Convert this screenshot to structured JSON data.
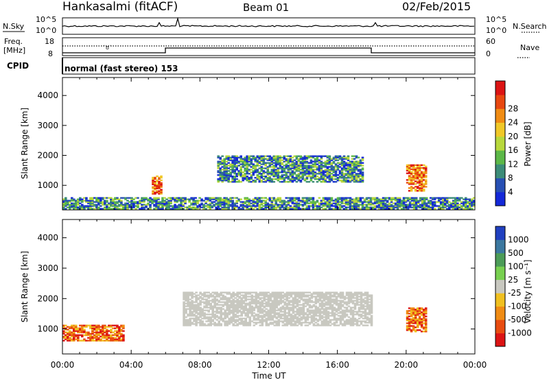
{
  "header": {
    "station": "Hankasalmi (fitACF)",
    "beam": "Beam 01",
    "date": "02/Feb/2015"
  },
  "noise_panel": {
    "left_label": "N.Sky",
    "right_label": "N.Search",
    "left_ticks": [
      "10^5",
      "10^0"
    ],
    "right_ticks": [
      "10^5",
      "10^0"
    ]
  },
  "freq_panel": {
    "left_label_1": "Freq.",
    "left_label_2": "[MHz]",
    "left_ticks": [
      "18",
      "8"
    ],
    "right_label": "Nave",
    "right_ticks": [
      "60",
      "0"
    ]
  },
  "cpid_panel": {
    "label": "CPID",
    "value": "normal (fast stereo) 153"
  },
  "power_panel": {
    "ylabel": "Slant Range [km]",
    "colorbar_label": "Power [dB]"
  },
  "velocity_panel": {
    "ylabel": "Slant Range [km]",
    "colorbar_label": "Velocity [m s⁻¹]"
  },
  "xaxis": {
    "label": "Time UT",
    "ticks": [
      "00:00",
      "04:00",
      "08:00",
      "12:00",
      "16:00",
      "20:00",
      "00:00"
    ]
  },
  "chart_data": [
    {
      "type": "heatmap",
      "title": "Power",
      "xlabel": "Time UT",
      "ylabel": "Slant Range [km]",
      "xlim": [
        0,
        24
      ],
      "ylim": [
        180,
        4600
      ],
      "yticks": [
        1000,
        2000,
        3000,
        4000
      ],
      "colorbar": {
        "label": "Power [dB]",
        "ticks": [
          4,
          8,
          12,
          16,
          20,
          24,
          28
        ],
        "colors": [
          "#1428d8",
          "#2850b4",
          "#3c8c78",
          "#5cb848",
          "#b8d83c",
          "#f0c828",
          "#f08c14",
          "#e84810",
          "#dc1414"
        ]
      },
      "features": [
        {
          "time_start": 0.0,
          "time_end": 24.0,
          "range_low": 200,
          "range_high": 600,
          "level": "low (4-12 dB)"
        },
        {
          "time_start": 5.2,
          "time_end": 5.8,
          "range_low": 700,
          "range_high": 1300,
          "level": "high (24-30 dB)"
        },
        {
          "time_start": 9.0,
          "time_end": 17.5,
          "range_low": 1100,
          "range_high": 2000,
          "level": "mixed, peak ~28 dB"
        },
        {
          "time_start": 20.0,
          "time_end": 21.2,
          "range_low": 800,
          "range_high": 1700,
          "level": "high (24-30 dB)"
        }
      ]
    },
    {
      "type": "heatmap",
      "title": "Velocity",
      "xlabel": "Time UT",
      "ylabel": "Slant Range [km]",
      "xlim": [
        0,
        24
      ],
      "ylim": [
        180,
        4600
      ],
      "yticks": [
        1000,
        2000,
        3000,
        4000
      ],
      "colorbar": {
        "label": "Velocity [m s⁻¹]",
        "ticks": [
          1000,
          500,
          100,
          25,
          -25,
          -100,
          -500,
          -1000
        ],
        "colors": [
          "#2040c0",
          "#3c78a0",
          "#4c9c58",
          "#78d050",
          "#c8c8c0",
          "#f0c020",
          "#f08c14",
          "#e84c10",
          "#dc1414"
        ]
      },
      "features": [
        {
          "time_start": 7.0,
          "time_end": 18.0,
          "range_low": 1100,
          "range_high": 2200,
          "level": "ground scatter (±25 m/s)"
        },
        {
          "time_start": 20.0,
          "time_end": 21.2,
          "range_low": 900,
          "range_high": 1700,
          "level": "-100 to -500 m/s"
        },
        {
          "time_start": 0.0,
          "time_end": 3.5,
          "range_low": 600,
          "range_high": 1100,
          "level": "-100 to -500 m/s"
        }
      ]
    }
  ]
}
